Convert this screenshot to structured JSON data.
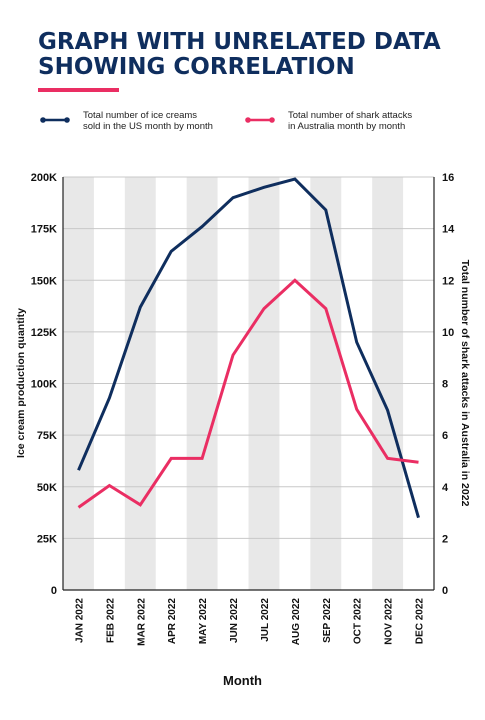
{
  "title_lines": [
    "GRAPH WITH UNRELATED DATA",
    "SHOWING CORRELATION"
  ],
  "colors": {
    "primary": "#0f2e5e",
    "accent": "#ea2e63",
    "band": "#e8e8e8",
    "grid": "#c8c8c8"
  },
  "legend": [
    {
      "lines": [
        "Total number of ice creams",
        "sold in the US month by month"
      ],
      "color": "#0f2e5e"
    },
    {
      "lines": [
        "Total number of shark attacks",
        "in Australia month by month"
      ],
      "color": "#ea2e63"
    }
  ],
  "chart_data": {
    "type": "line",
    "categories": [
      "JAN 2022",
      "FEB 2022",
      "MAR 2022",
      "APR 2022",
      "MAY 2022",
      "JUN 2022",
      "JUL 2022",
      "AUG 2022",
      "SEP 2022",
      "OCT 2022",
      "NOV 2022",
      "DEC 2022"
    ],
    "series": [
      {
        "name": "Total number of ice creams sold in the US month by month",
        "axis": "left",
        "color": "#0f2e5e",
        "values": [
          58000,
          93000,
          137000,
          164000,
          176000,
          190000,
          195000,
          199000,
          184000,
          120000,
          87000,
          35000
        ]
      },
      {
        "name": "Total number of shark attacks in Australia month by month",
        "axis": "right",
        "color": "#ea2e63",
        "values": [
          3.2,
          4.05,
          3.3,
          5.1,
          5.1,
          9.1,
          10.9,
          12,
          10.9,
          7,
          5.1,
          4.95
        ]
      }
    ],
    "y_left": {
      "label": "Ice cream production quantity",
      "min": 0,
      "max": 200000,
      "ticks": [
        0,
        25000,
        50000,
        75000,
        100000,
        125000,
        150000,
        175000,
        200000
      ],
      "tick_labels": [
        "0",
        "25K",
        "50K",
        "75K",
        "100K",
        "125K",
        "150K",
        "175K",
        "200K"
      ]
    },
    "y_right": {
      "label": "Total number of shark attacks in Australia in 2022",
      "min": 0,
      "max": 16,
      "ticks": [
        0,
        2,
        4,
        6,
        8,
        10,
        12,
        14,
        16
      ],
      "tick_labels": [
        "0",
        "2",
        "4",
        "6",
        "8",
        "10",
        "12",
        "14",
        "16"
      ]
    },
    "xlabel": "Month",
    "grid": "horizontal",
    "alternating_bands": true
  }
}
